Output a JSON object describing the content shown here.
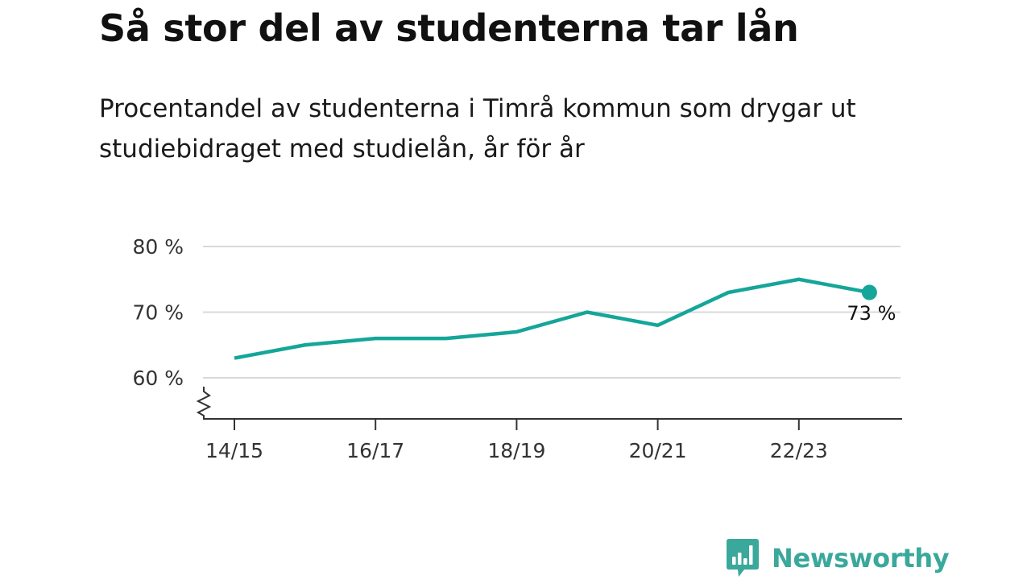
{
  "title": "Så stor del av studenterna tar lån",
  "subtitle": "Procentandel av studenterna i Timrå kommun som drygar ut studiebidraget med studielån, år för år",
  "brand": {
    "name": "Newsworthy",
    "color": "#3aa89b",
    "icon": "newsworthy-logo-icon"
  },
  "chart_data": {
    "type": "line",
    "title": "Så stor del av studenterna tar lån",
    "subtitle": "Procentandel av studenterna i Timrå kommun som drygar ut studiebidraget med studielån, år för år",
    "x": [
      "14/15",
      "15/16",
      "16/17",
      "17/18",
      "18/19",
      "19/20",
      "20/21",
      "21/22",
      "22/23",
      "23/24"
    ],
    "x_tick_labels": [
      "14/15",
      "16/17",
      "18/19",
      "20/21",
      "22/23"
    ],
    "series": [
      {
        "values": [
          63,
          65,
          66,
          66,
          67,
          70,
          68,
          73,
          75,
          73
        ],
        "color": "#14a699"
      }
    ],
    "y_ticks": [
      60,
      70,
      80
    ],
    "y_tick_labels": [
      "60 %",
      "70 %",
      "80 %"
    ],
    "ylim": [
      54.5,
      80
    ],
    "y_axis_break": true,
    "grid": true,
    "last_value_label": "73 %",
    "xlabel": "",
    "ylabel": ""
  }
}
